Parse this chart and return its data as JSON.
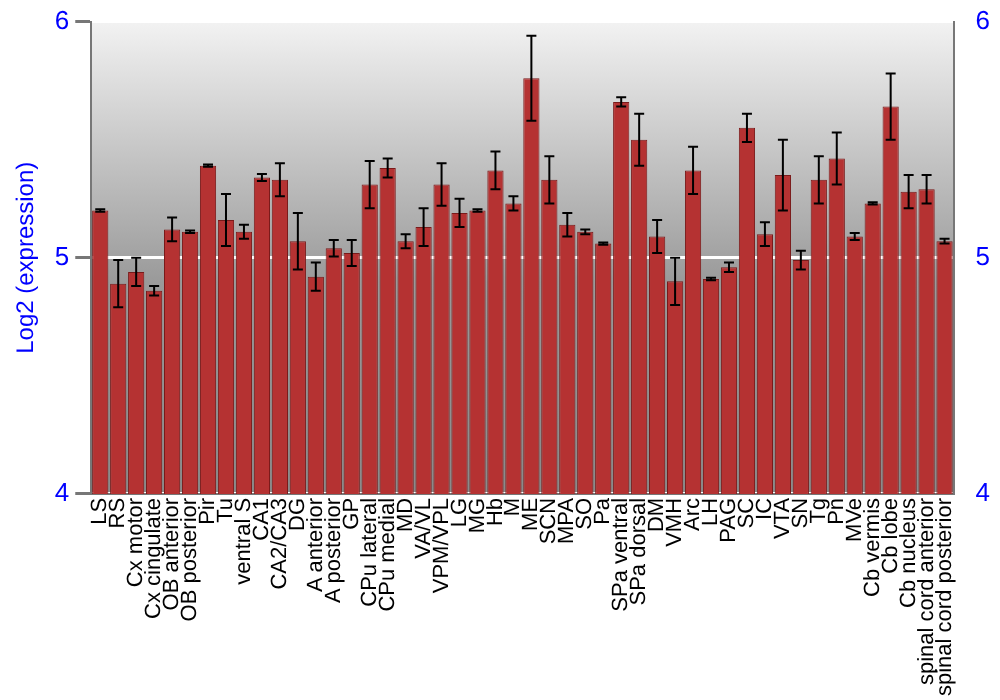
{
  "chart_data": {
    "type": "bar",
    "ylabel": "Log2 (expression)",
    "categories": [
      "LS",
      "RS",
      "Cx motor",
      "Cx cingulate",
      "OB anterior",
      "OB posterior",
      "Pir",
      "Tu",
      "ventral S",
      "CA1",
      "CA2/CA3",
      "DG",
      "A anterior",
      "A posterior",
      "GP",
      "CPu lateral",
      "CPu medial",
      "MD",
      "VA/VL",
      "VPM/VPL",
      "LG",
      "MG",
      "Hb",
      "M",
      "ME",
      "SCN",
      "MPA",
      "SO",
      "Pa",
      "SPa ventral",
      "SPa dorsal",
      "DM",
      "VMH",
      "Arc",
      "LH",
      "PAG",
      "SC",
      "IC",
      "VTA",
      "SN",
      "Tg",
      "Pn",
      "MVe",
      "Cb vermis",
      "Cb lobe",
      "Cb nucleus",
      "spinal cord anterior",
      "spinal cord posterior"
    ],
    "values": [
      5.2,
      4.89,
      4.94,
      4.86,
      5.12,
      5.11,
      5.39,
      5.16,
      5.11,
      5.34,
      5.33,
      5.07,
      4.92,
      5.04,
      5.02,
      5.31,
      5.38,
      5.07,
      5.13,
      5.31,
      5.19,
      5.2,
      5.37,
      5.23,
      5.76,
      5.33,
      5.14,
      5.11,
      5.06,
      5.66,
      5.5,
      5.09,
      4.9,
      5.37,
      4.91,
      4.96,
      5.55,
      5.1,
      5.35,
      4.99,
      5.33,
      5.42,
      5.09,
      5.23,
      5.64,
      5.28,
      5.29,
      5.07
    ],
    "errors": [
      0.005,
      0.1,
      0.06,
      0.02,
      0.05,
      0.005,
      0.005,
      0.11,
      0.03,
      0.015,
      0.07,
      0.12,
      0.06,
      0.035,
      0.055,
      0.1,
      0.04,
      0.03,
      0.08,
      0.09,
      0.06,
      0.005,
      0.08,
      0.03,
      0.18,
      0.1,
      0.05,
      0.01,
      0.005,
      0.02,
      0.11,
      0.07,
      0.1,
      0.1,
      0.005,
      0.02,
      0.06,
      0.05,
      0.15,
      0.04,
      0.1,
      0.11,
      0.015,
      0.005,
      0.14,
      0.07,
      0.06,
      0.01
    ],
    "color": "#b53232",
    "ylim": [
      4,
      6
    ],
    "yticks": [
      4,
      5,
      6
    ],
    "y2lim": [
      4,
      6
    ],
    "y2ticks": [
      4,
      5,
      6
    ],
    "grid": "y",
    "legend": false
  }
}
